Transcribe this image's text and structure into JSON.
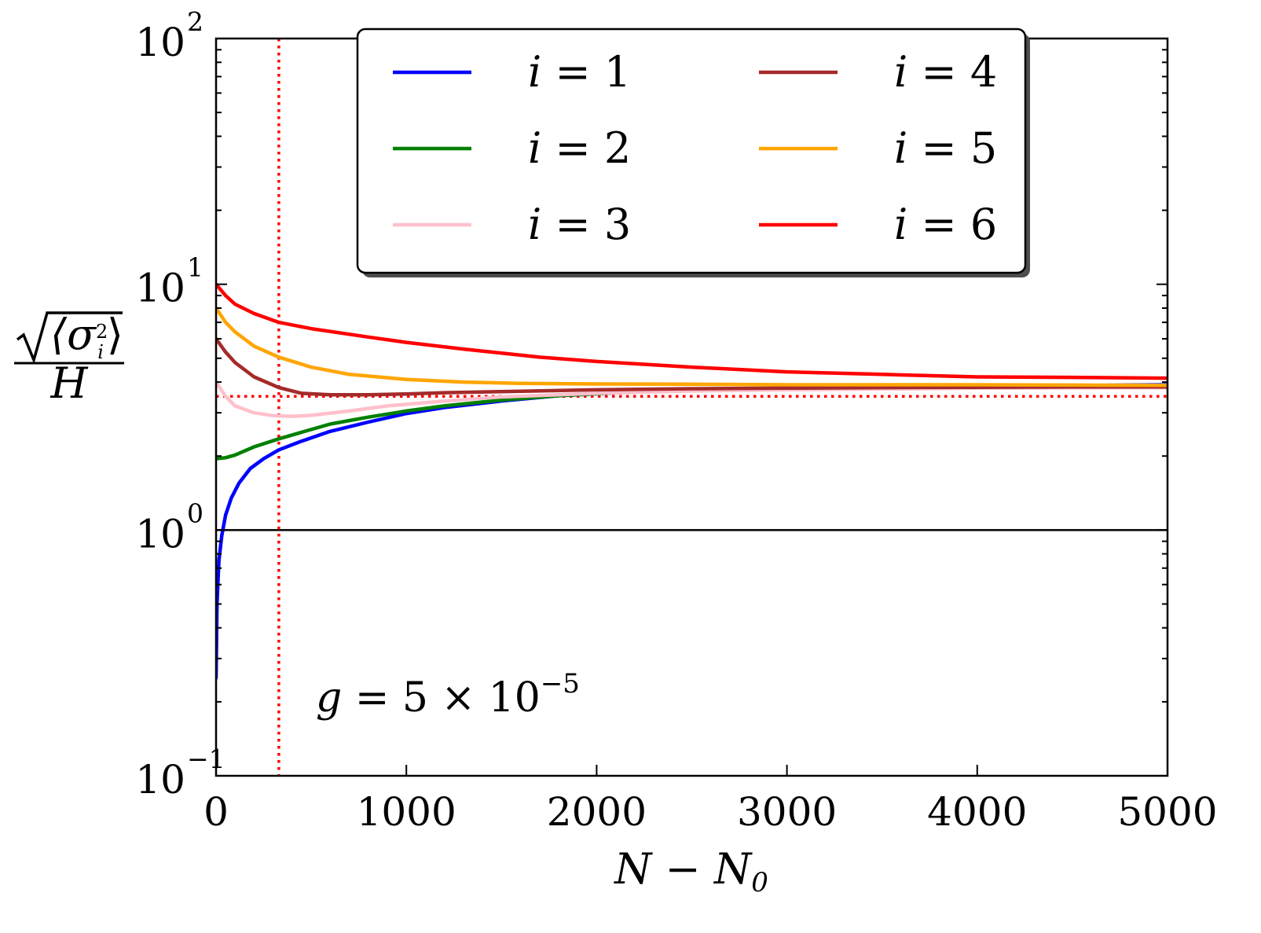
{
  "chart_data": {
    "type": "line",
    "xlabel": "N − N0",
    "xlabel_parts": {
      "main": "N − N",
      "sub": "0"
    },
    "ylabel_parts": {
      "numerator_inner": "⟨σ",
      "sup": "2",
      "sub": "i",
      "close": "⟩",
      "denominator": "H"
    },
    "xlim": [
      0,
      5000
    ],
    "ylim": [
      0.1,
      100
    ],
    "yscale": "log",
    "grid": false,
    "legend_position": "top-center",
    "x_ticks": [
      "0",
      "1000",
      "2000",
      "3000",
      "4000",
      "5000"
    ],
    "y_ticks": [
      {
        "base": "10",
        "exp": "−1",
        "value": 0.1
      },
      {
        "base": "10",
        "exp": "0",
        "value": 1
      },
      {
        "base": "10",
        "exp": "1",
        "value": 10
      },
      {
        "base": "10",
        "exp": "2",
        "value": 100
      }
    ],
    "annotation": {
      "lhs": "g",
      "eq": " = 5 × 10",
      "exp": "−5"
    },
    "reference_lines": {
      "horizontal_solid": {
        "y": 1.0,
        "color": "#000000"
      },
      "horizontal_dotted": {
        "y": 3.5,
        "color": "#ff0000"
      },
      "vertical_dotted": {
        "x": 330,
        "color": "#ff0000"
      }
    },
    "series": [
      {
        "name": "i = 1",
        "label_var": "i",
        "label_rest": " = 1",
        "color": "#0000ff",
        "x": [
          0,
          5,
          15,
          30,
          50,
          80,
          120,
          180,
          250,
          330,
          450,
          600,
          800,
          1000,
          1200,
          1500,
          1800,
          2200,
          2600,
          3000,
          3500,
          4000,
          4500,
          5000
        ],
        "y": [
          0.25,
          0.5,
          0.75,
          0.95,
          1.15,
          1.35,
          1.55,
          1.78,
          1.95,
          2.12,
          2.3,
          2.52,
          2.75,
          2.98,
          3.15,
          3.35,
          3.52,
          3.65,
          3.72,
          3.78,
          3.82,
          3.85,
          3.87,
          3.9
        ]
      },
      {
        "name": "i = 2",
        "label_var": "i",
        "label_rest": " = 2",
        "color": "#008000",
        "x": [
          0,
          50,
          100,
          200,
          330,
          450,
          600,
          800,
          1000,
          1200,
          1500,
          1800,
          2200,
          2600,
          3000,
          3500,
          4000,
          4500,
          5000
        ],
        "y": [
          1.95,
          1.97,
          2.02,
          2.18,
          2.35,
          2.5,
          2.7,
          2.88,
          3.05,
          3.2,
          3.38,
          3.52,
          3.65,
          3.72,
          3.76,
          3.8,
          3.82,
          3.84,
          3.86
        ]
      },
      {
        "name": "i = 3",
        "label_var": "i",
        "label_rest": " = 3",
        "color": "#ffc0cb",
        "x": [
          0,
          50,
          100,
          200,
          300,
          400,
          500,
          700,
          900,
          1200,
          1500,
          2000,
          2500,
          3000,
          3500,
          4000,
          5000
        ],
        "y": [
          4.0,
          3.5,
          3.2,
          3.0,
          2.92,
          2.9,
          2.93,
          3.05,
          3.2,
          3.35,
          3.48,
          3.6,
          3.68,
          3.72,
          3.75,
          3.78,
          3.8
        ]
      },
      {
        "name": "i = 4",
        "label_var": "i",
        "label_rest": " = 4",
        "color": "#a52a2a",
        "x": [
          0,
          50,
          100,
          200,
          330,
          450,
          600,
          800,
          1000,
          1200,
          1500,
          2000,
          2500,
          3000,
          3500,
          4000,
          4500,
          5000
        ],
        "y": [
          6.0,
          5.3,
          4.8,
          4.2,
          3.8,
          3.6,
          3.55,
          3.55,
          3.58,
          3.62,
          3.66,
          3.72,
          3.76,
          3.78,
          3.8,
          3.81,
          3.82,
          3.82
        ]
      },
      {
        "name": "i = 5",
        "label_var": "i",
        "label_rest": " = 5",
        "color": "#ffa500",
        "x": [
          0,
          50,
          100,
          200,
          330,
          500,
          700,
          1000,
          1300,
          1600,
          2000,
          2500,
          3000,
          3500,
          4000,
          4500,
          5000
        ],
        "y": [
          8.0,
          7.0,
          6.4,
          5.6,
          5.05,
          4.6,
          4.3,
          4.1,
          4.0,
          3.95,
          3.93,
          3.92,
          3.9,
          3.9,
          3.9,
          3.89,
          3.88
        ]
      },
      {
        "name": "i = 6",
        "label_var": "i",
        "label_rest": " = 6",
        "color": "#ff0000",
        "x": [
          0,
          50,
          100,
          200,
          330,
          500,
          800,
          1000,
          1300,
          1700,
          2000,
          2500,
          3000,
          3500,
          4000,
          4500,
          5000
        ],
        "y": [
          10.0,
          9.0,
          8.3,
          7.6,
          7.0,
          6.6,
          6.1,
          5.8,
          5.45,
          5.05,
          4.85,
          4.6,
          4.4,
          4.3,
          4.2,
          4.18,
          4.15
        ]
      }
    ]
  }
}
